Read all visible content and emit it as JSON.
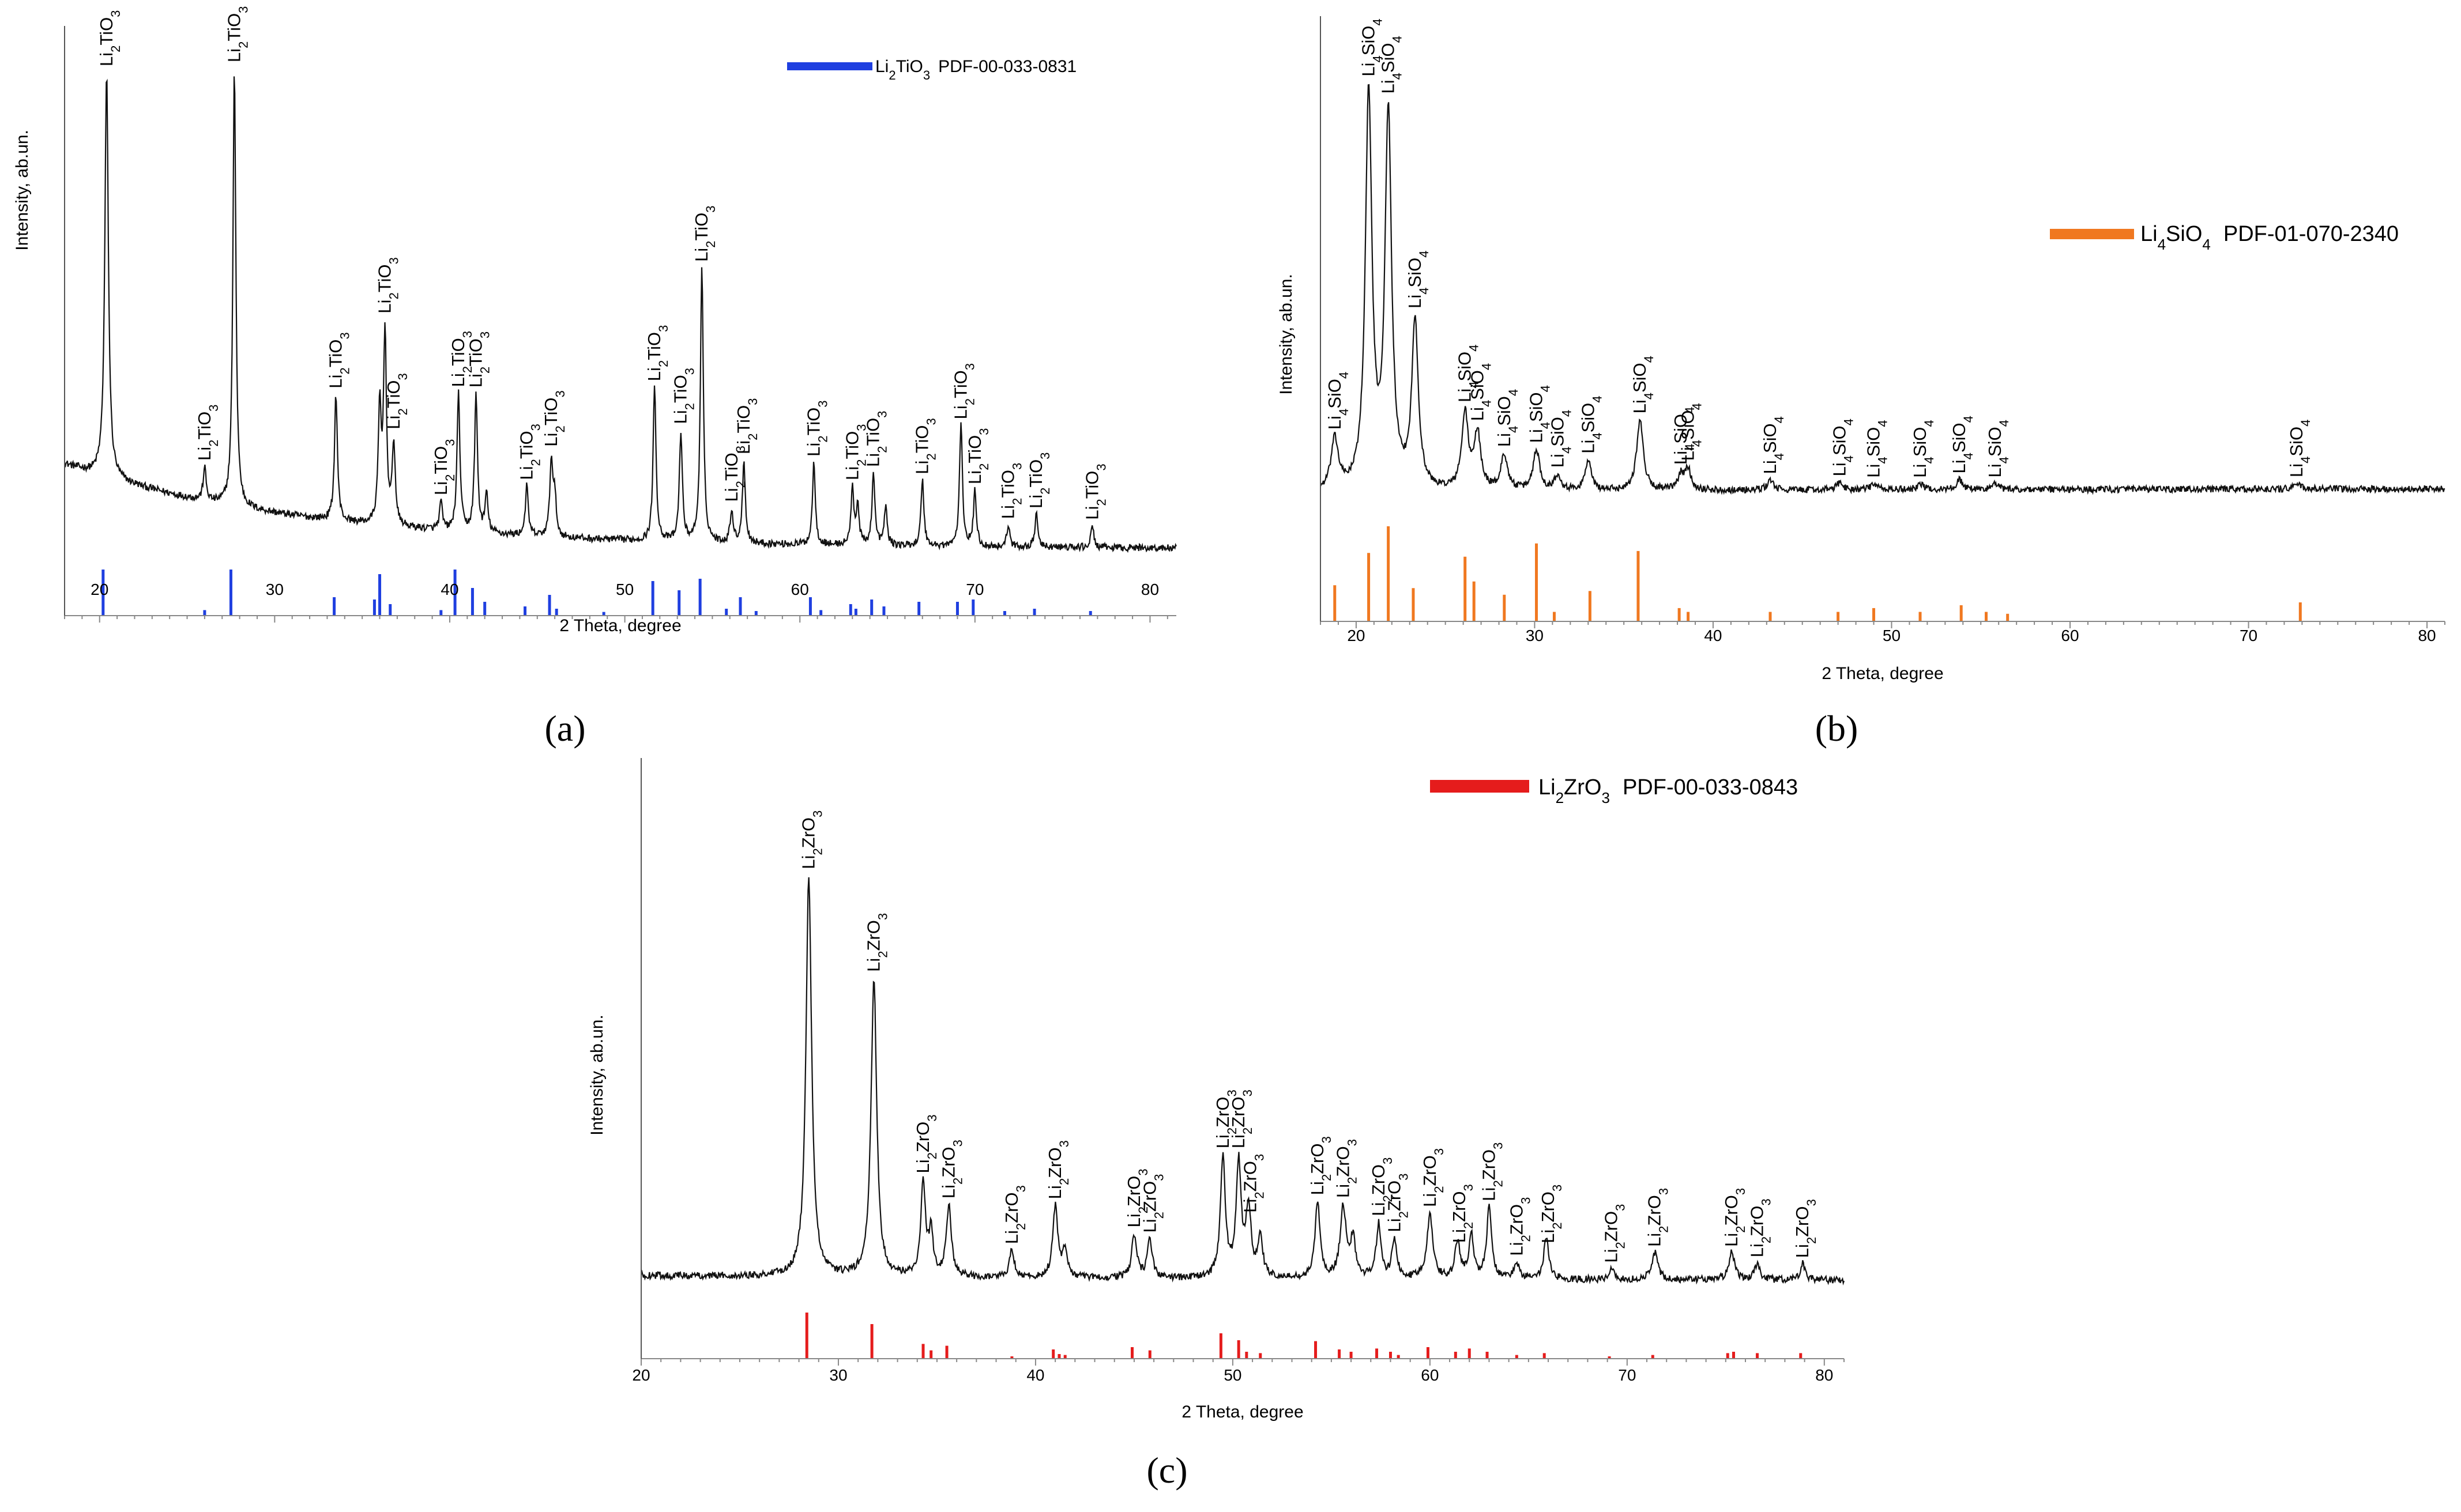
{
  "chart_data": [
    {
      "id": "a",
      "type": "line",
      "panel_label": "(a)",
      "xlabel": "2 Theta, degree",
      "ylabel": "Intensity, ab.un.",
      "xlim": [
        18,
        81.5
      ],
      "xticks": [
        20,
        30,
        40,
        50,
        60,
        70,
        80
      ],
      "legend": {
        "phase_main": "Li",
        "phase_sub": "2",
        "phase_rest": "TiO",
        "phase_sub2": "3",
        "card": "PDF-00-033-0831",
        "color": "#1f3fe0",
        "position": "top-right"
      },
      "phase": {
        "main": "Li",
        "sub": "2",
        "rest": "TiO",
        "sub2": "3"
      },
      "background": {
        "start": 0.2,
        "end": 0.045,
        "tau": 14
      },
      "peaks": [
        {
          "x": 20.4,
          "h": 0.74,
          "w": 0.12
        },
        {
          "x": 26.0,
          "h": 0.06,
          "w": 0.1
        },
        {
          "x": 27.7,
          "h": 0.8,
          "w": 0.1
        },
        {
          "x": 33.5,
          "h": 0.23,
          "w": 0.1
        },
        {
          "x": 36.0,
          "h": 0.21,
          "w": 0.1
        },
        {
          "x": 36.3,
          "h": 0.35,
          "w": 0.1
        },
        {
          "x": 36.8,
          "h": 0.15,
          "w": 0.1
        },
        {
          "x": 39.5,
          "h": 0.05,
          "w": 0.1
        },
        {
          "x": 40.5,
          "h": 0.25,
          "w": 0.1
        },
        {
          "x": 41.5,
          "h": 0.25,
          "w": 0.1
        },
        {
          "x": 42.1,
          "h": 0.07,
          "w": 0.1
        },
        {
          "x": 44.4,
          "h": 0.09,
          "w": 0.1
        },
        {
          "x": 45.8,
          "h": 0.14,
          "w": 0.1
        },
        {
          "x": 46.0,
          "h": 0.07,
          "w": 0.1
        },
        {
          "x": 51.7,
          "h": 0.28,
          "w": 0.1
        },
        {
          "x": 53.2,
          "h": 0.2,
          "w": 0.1
        },
        {
          "x": 54.4,
          "h": 0.5,
          "w": 0.1
        },
        {
          "x": 56.1,
          "h": 0.06,
          "w": 0.1
        },
        {
          "x": 56.8,
          "h": 0.15,
          "w": 0.1
        },
        {
          "x": 60.8,
          "h": 0.15,
          "w": 0.1
        },
        {
          "x": 63.0,
          "h": 0.1,
          "w": 0.1
        },
        {
          "x": 63.3,
          "h": 0.07,
          "w": 0.1
        },
        {
          "x": 64.2,
          "h": 0.13,
          "w": 0.1
        },
        {
          "x": 64.9,
          "h": 0.07,
          "w": 0.1
        },
        {
          "x": 67.0,
          "h": 0.12,
          "w": 0.1
        },
        {
          "x": 69.2,
          "h": 0.22,
          "w": 0.1
        },
        {
          "x": 70.0,
          "h": 0.1,
          "w": 0.1
        },
        {
          "x": 71.9,
          "h": 0.04,
          "w": 0.1
        },
        {
          "x": 73.5,
          "h": 0.06,
          "w": 0.1
        },
        {
          "x": 76.7,
          "h": 0.04,
          "w": 0.1
        }
      ],
      "reference_lines": [
        {
          "x": 20.2,
          "h": 1.0
        },
        {
          "x": 26.0,
          "h": 0.12
        },
        {
          "x": 27.5,
          "h": 1.0
        },
        {
          "x": 33.4,
          "h": 0.4
        },
        {
          "x": 35.7,
          "h": 0.35
        },
        {
          "x": 36.0,
          "h": 0.9
        },
        {
          "x": 36.6,
          "h": 0.25
        },
        {
          "x": 39.5,
          "h": 0.12
        },
        {
          "x": 40.3,
          "h": 1.0
        },
        {
          "x": 41.3,
          "h": 0.6
        },
        {
          "x": 42.0,
          "h": 0.3
        },
        {
          "x": 44.3,
          "h": 0.2
        },
        {
          "x": 45.7,
          "h": 0.45
        },
        {
          "x": 46.1,
          "h": 0.15
        },
        {
          "x": 48.8,
          "h": 0.08
        },
        {
          "x": 51.6,
          "h": 0.75
        },
        {
          "x": 53.1,
          "h": 0.55
        },
        {
          "x": 54.3,
          "h": 0.8
        },
        {
          "x": 55.8,
          "h": 0.15
        },
        {
          "x": 56.6,
          "h": 0.4
        },
        {
          "x": 57.5,
          "h": 0.1
        },
        {
          "x": 60.6,
          "h": 0.4
        },
        {
          "x": 61.2,
          "h": 0.12
        },
        {
          "x": 62.9,
          "h": 0.25
        },
        {
          "x": 63.2,
          "h": 0.15
        },
        {
          "x": 64.1,
          "h": 0.35
        },
        {
          "x": 64.8,
          "h": 0.2
        },
        {
          "x": 66.8,
          "h": 0.3
        },
        {
          "x": 69.0,
          "h": 0.3
        },
        {
          "x": 69.9,
          "h": 0.35
        },
        {
          "x": 71.7,
          "h": 0.1
        },
        {
          "x": 73.4,
          "h": 0.15
        },
        {
          "x": 76.6,
          "h": 0.1
        }
      ],
      "annotations": [
        {
          "x": 20.4
        },
        {
          "x": 26.0
        },
        {
          "x": 27.7
        },
        {
          "x": 33.5
        },
        {
          "x": 36.3
        },
        {
          "x": 36.8
        },
        {
          "x": 39.5
        },
        {
          "x": 40.5
        },
        {
          "x": 41.5
        },
        {
          "x": 44.4
        },
        {
          "x": 45.8
        },
        {
          "x": 51.7
        },
        {
          "x": 53.2
        },
        {
          "x": 54.4
        },
        {
          "x": 56.1
        },
        {
          "x": 56.8
        },
        {
          "x": 60.8
        },
        {
          "x": 63.0
        },
        {
          "x": 64.2
        },
        {
          "x": 67.0
        },
        {
          "x": 69.2
        },
        {
          "x": 70.0
        },
        {
          "x": 71.9
        },
        {
          "x": 73.5
        },
        {
          "x": 76.7
        }
      ]
    },
    {
      "id": "b",
      "type": "line",
      "panel_label": "(b)",
      "xlabel": "2 Theta, degree",
      "ylabel": "Intensity, ab.un.",
      "xlim": [
        18,
        81
      ],
      "xticks": [
        20,
        30,
        40,
        50,
        60,
        70,
        80
      ],
      "legend": {
        "phase_main": "Li",
        "phase_sub": "4",
        "phase_rest": "SiO",
        "phase_sub2": "4",
        "card": "PDF-01-070-2340",
        "color": "#f07820",
        "position": "top-right"
      },
      "phase": {
        "main": "Li",
        "sub": "4",
        "rest": "SiO",
        "sub2": "4"
      },
      "background": {
        "start": 0.055,
        "end": 0.065,
        "tau": 20
      },
      "peaks": [
        {
          "x": 18.8,
          "h": 0.1,
          "w": 0.25
        },
        {
          "x": 20.7,
          "h": 0.78,
          "w": 0.22
        },
        {
          "x": 21.8,
          "h": 0.74,
          "w": 0.22
        },
        {
          "x": 23.3,
          "h": 0.33,
          "w": 0.22
        },
        {
          "x": 26.1,
          "h": 0.15,
          "w": 0.22
        },
        {
          "x": 26.8,
          "h": 0.11,
          "w": 0.22
        },
        {
          "x": 28.3,
          "h": 0.07,
          "w": 0.22
        },
        {
          "x": 30.1,
          "h": 0.08,
          "w": 0.22
        },
        {
          "x": 31.3,
          "h": 0.03,
          "w": 0.22
        },
        {
          "x": 33.0,
          "h": 0.06,
          "w": 0.2
        },
        {
          "x": 35.9,
          "h": 0.14,
          "w": 0.22
        },
        {
          "x": 38.2,
          "h": 0.03,
          "w": 0.2
        },
        {
          "x": 38.6,
          "h": 0.04,
          "w": 0.2
        },
        {
          "x": 43.2,
          "h": 0.02,
          "w": 0.2
        },
        {
          "x": 47.1,
          "h": 0.015,
          "w": 0.2
        },
        {
          "x": 49.0,
          "h": 0.012,
          "w": 0.2
        },
        {
          "x": 51.6,
          "h": 0.012,
          "w": 0.2
        },
        {
          "x": 53.8,
          "h": 0.02,
          "w": 0.2
        },
        {
          "x": 55.8,
          "h": 0.012,
          "w": 0.2
        },
        {
          "x": 72.7,
          "h": 0.012,
          "w": 0.2
        }
      ],
      "reference_lines": [
        {
          "x": 18.8,
          "h": 0.38
        },
        {
          "x": 20.7,
          "h": 0.72
        },
        {
          "x": 21.8,
          "h": 1.0
        },
        {
          "x": 23.2,
          "h": 0.35
        },
        {
          "x": 26.1,
          "h": 0.68
        },
        {
          "x": 26.6,
          "h": 0.42
        },
        {
          "x": 28.3,
          "h": 0.28
        },
        {
          "x": 30.1,
          "h": 0.82
        },
        {
          "x": 31.1,
          "h": 0.1
        },
        {
          "x": 33.1,
          "h": 0.32
        },
        {
          "x": 35.8,
          "h": 0.74
        },
        {
          "x": 38.1,
          "h": 0.14
        },
        {
          "x": 38.6,
          "h": 0.1
        },
        {
          "x": 43.2,
          "h": 0.1
        },
        {
          "x": 47.0,
          "h": 0.1
        },
        {
          "x": 49.0,
          "h": 0.14
        },
        {
          "x": 51.6,
          "h": 0.1
        },
        {
          "x": 53.9,
          "h": 0.17
        },
        {
          "x": 55.3,
          "h": 0.1
        },
        {
          "x": 56.5,
          "h": 0.08
        },
        {
          "x": 72.9,
          "h": 0.2
        }
      ],
      "annotations": [
        {
          "x": 18.8
        },
        {
          "x": 20.7
        },
        {
          "x": 21.8
        },
        {
          "x": 23.3
        },
        {
          "x": 26.1
        },
        {
          "x": 26.8
        },
        {
          "x": 28.3
        },
        {
          "x": 30.1
        },
        {
          "x": 31.3
        },
        {
          "x": 33.0
        },
        {
          "x": 35.9
        },
        {
          "x": 38.2
        },
        {
          "x": 38.6
        },
        {
          "x": 43.2
        },
        {
          "x": 47.1
        },
        {
          "x": 49.0
        },
        {
          "x": 51.6
        },
        {
          "x": 53.8
        },
        {
          "x": 55.8
        },
        {
          "x": 72.7
        }
      ]
    },
    {
      "id": "c",
      "type": "line",
      "panel_label": "(c)",
      "xlabel": "2 Theta, degree",
      "ylabel": "Intensity, ab.un.",
      "xlim": [
        20,
        81
      ],
      "xticks": [
        20,
        30,
        40,
        50,
        60,
        70,
        80
      ],
      "legend": {
        "phase_main": "Li",
        "phase_sub": "2",
        "phase_rest": "ZrO",
        "phase_sub2": "3",
        "card": "PDF-00-033-0843",
        "color": "#e51c1c",
        "position": "top-right"
      },
      "phase": {
        "main": "Li",
        "sub": "2",
        "rest": "ZrO",
        "sub2": "3"
      },
      "background": {
        "start": 0.045,
        "end": 0.035,
        "tau": 30
      },
      "peaks": [
        {
          "x": 28.5,
          "h": 0.74,
          "w": 0.17
        },
        {
          "x": 31.8,
          "h": 0.55,
          "w": 0.17
        },
        {
          "x": 34.3,
          "h": 0.17,
          "w": 0.15
        },
        {
          "x": 34.7,
          "h": 0.08,
          "w": 0.12
        },
        {
          "x": 35.6,
          "h": 0.13,
          "w": 0.15
        },
        {
          "x": 38.8,
          "h": 0.05,
          "w": 0.15
        },
        {
          "x": 41.0,
          "h": 0.13,
          "w": 0.15
        },
        {
          "x": 41.5,
          "h": 0.05,
          "w": 0.15
        },
        {
          "x": 45.0,
          "h": 0.08,
          "w": 0.15
        },
        {
          "x": 45.8,
          "h": 0.07,
          "w": 0.15
        },
        {
          "x": 49.5,
          "h": 0.22,
          "w": 0.15
        },
        {
          "x": 50.3,
          "h": 0.21,
          "w": 0.15
        },
        {
          "x": 50.8,
          "h": 0.13,
          "w": 0.15
        },
        {
          "x": 51.4,
          "h": 0.07,
          "w": 0.15
        },
        {
          "x": 54.3,
          "h": 0.14,
          "w": 0.15
        },
        {
          "x": 55.6,
          "h": 0.13,
          "w": 0.18
        },
        {
          "x": 56.1,
          "h": 0.07,
          "w": 0.15
        },
        {
          "x": 57.4,
          "h": 0.1,
          "w": 0.15
        },
        {
          "x": 58.2,
          "h": 0.07,
          "w": 0.15
        },
        {
          "x": 60.0,
          "h": 0.12,
          "w": 0.18
        },
        {
          "x": 61.4,
          "h": 0.07,
          "w": 0.15
        },
        {
          "x": 62.1,
          "h": 0.08,
          "w": 0.15
        },
        {
          "x": 63.0,
          "h": 0.13,
          "w": 0.15
        },
        {
          "x": 64.4,
          "h": 0.03,
          "w": 0.15
        },
        {
          "x": 65.9,
          "h": 0.08,
          "w": 0.15
        },
        {
          "x": 69.2,
          "h": 0.02,
          "w": 0.15
        },
        {
          "x": 71.4,
          "h": 0.05,
          "w": 0.18
        },
        {
          "x": 75.3,
          "h": 0.05,
          "w": 0.18
        },
        {
          "x": 76.6,
          "h": 0.03,
          "w": 0.15
        },
        {
          "x": 78.9,
          "h": 0.03,
          "w": 0.15
        }
      ],
      "reference_lines": [
        {
          "x": 28.4,
          "h": 1.0
        },
        {
          "x": 31.7,
          "h": 0.75
        },
        {
          "x": 34.3,
          "h": 0.32
        },
        {
          "x": 34.7,
          "h": 0.18
        },
        {
          "x": 35.5,
          "h": 0.28
        },
        {
          "x": 38.8,
          "h": 0.05
        },
        {
          "x": 40.9,
          "h": 0.2
        },
        {
          "x": 41.2,
          "h": 0.1
        },
        {
          "x": 41.5,
          "h": 0.08
        },
        {
          "x": 44.9,
          "h": 0.25
        },
        {
          "x": 45.8,
          "h": 0.18
        },
        {
          "x": 49.4,
          "h": 0.55
        },
        {
          "x": 50.3,
          "h": 0.4
        },
        {
          "x": 50.7,
          "h": 0.15
        },
        {
          "x": 51.4,
          "h": 0.12
        },
        {
          "x": 54.2,
          "h": 0.38
        },
        {
          "x": 55.4,
          "h": 0.2
        },
        {
          "x": 56.0,
          "h": 0.15
        },
        {
          "x": 57.3,
          "h": 0.22
        },
        {
          "x": 58.0,
          "h": 0.15
        },
        {
          "x": 58.4,
          "h": 0.08
        },
        {
          "x": 59.9,
          "h": 0.25
        },
        {
          "x": 61.3,
          "h": 0.15
        },
        {
          "x": 62.0,
          "h": 0.22
        },
        {
          "x": 62.9,
          "h": 0.15
        },
        {
          "x": 64.4,
          "h": 0.08
        },
        {
          "x": 65.8,
          "h": 0.12
        },
        {
          "x": 69.1,
          "h": 0.05
        },
        {
          "x": 71.3,
          "h": 0.08
        },
        {
          "x": 75.1,
          "h": 0.12
        },
        {
          "x": 75.4,
          "h": 0.15
        },
        {
          "x": 76.6,
          "h": 0.12
        },
        {
          "x": 78.8,
          "h": 0.12
        }
      ],
      "annotations": [
        {
          "x": 28.5
        },
        {
          "x": 31.8
        },
        {
          "x": 34.3
        },
        {
          "x": 35.6
        },
        {
          "x": 38.8
        },
        {
          "x": 41.0
        },
        {
          "x": 45.0
        },
        {
          "x": 45.8
        },
        {
          "x": 49.5
        },
        {
          "x": 50.3
        },
        {
          "x": 50.9
        },
        {
          "x": 54.3
        },
        {
          "x": 55.6
        },
        {
          "x": 57.4
        },
        {
          "x": 58.2
        },
        {
          "x": 60.0
        },
        {
          "x": 61.5
        },
        {
          "x": 63.0
        },
        {
          "x": 64.4
        },
        {
          "x": 66.0
        },
        {
          "x": 69.2
        },
        {
          "x": 71.4
        },
        {
          "x": 75.3
        },
        {
          "x": 76.6
        },
        {
          "x": 78.9
        }
      ]
    }
  ]
}
